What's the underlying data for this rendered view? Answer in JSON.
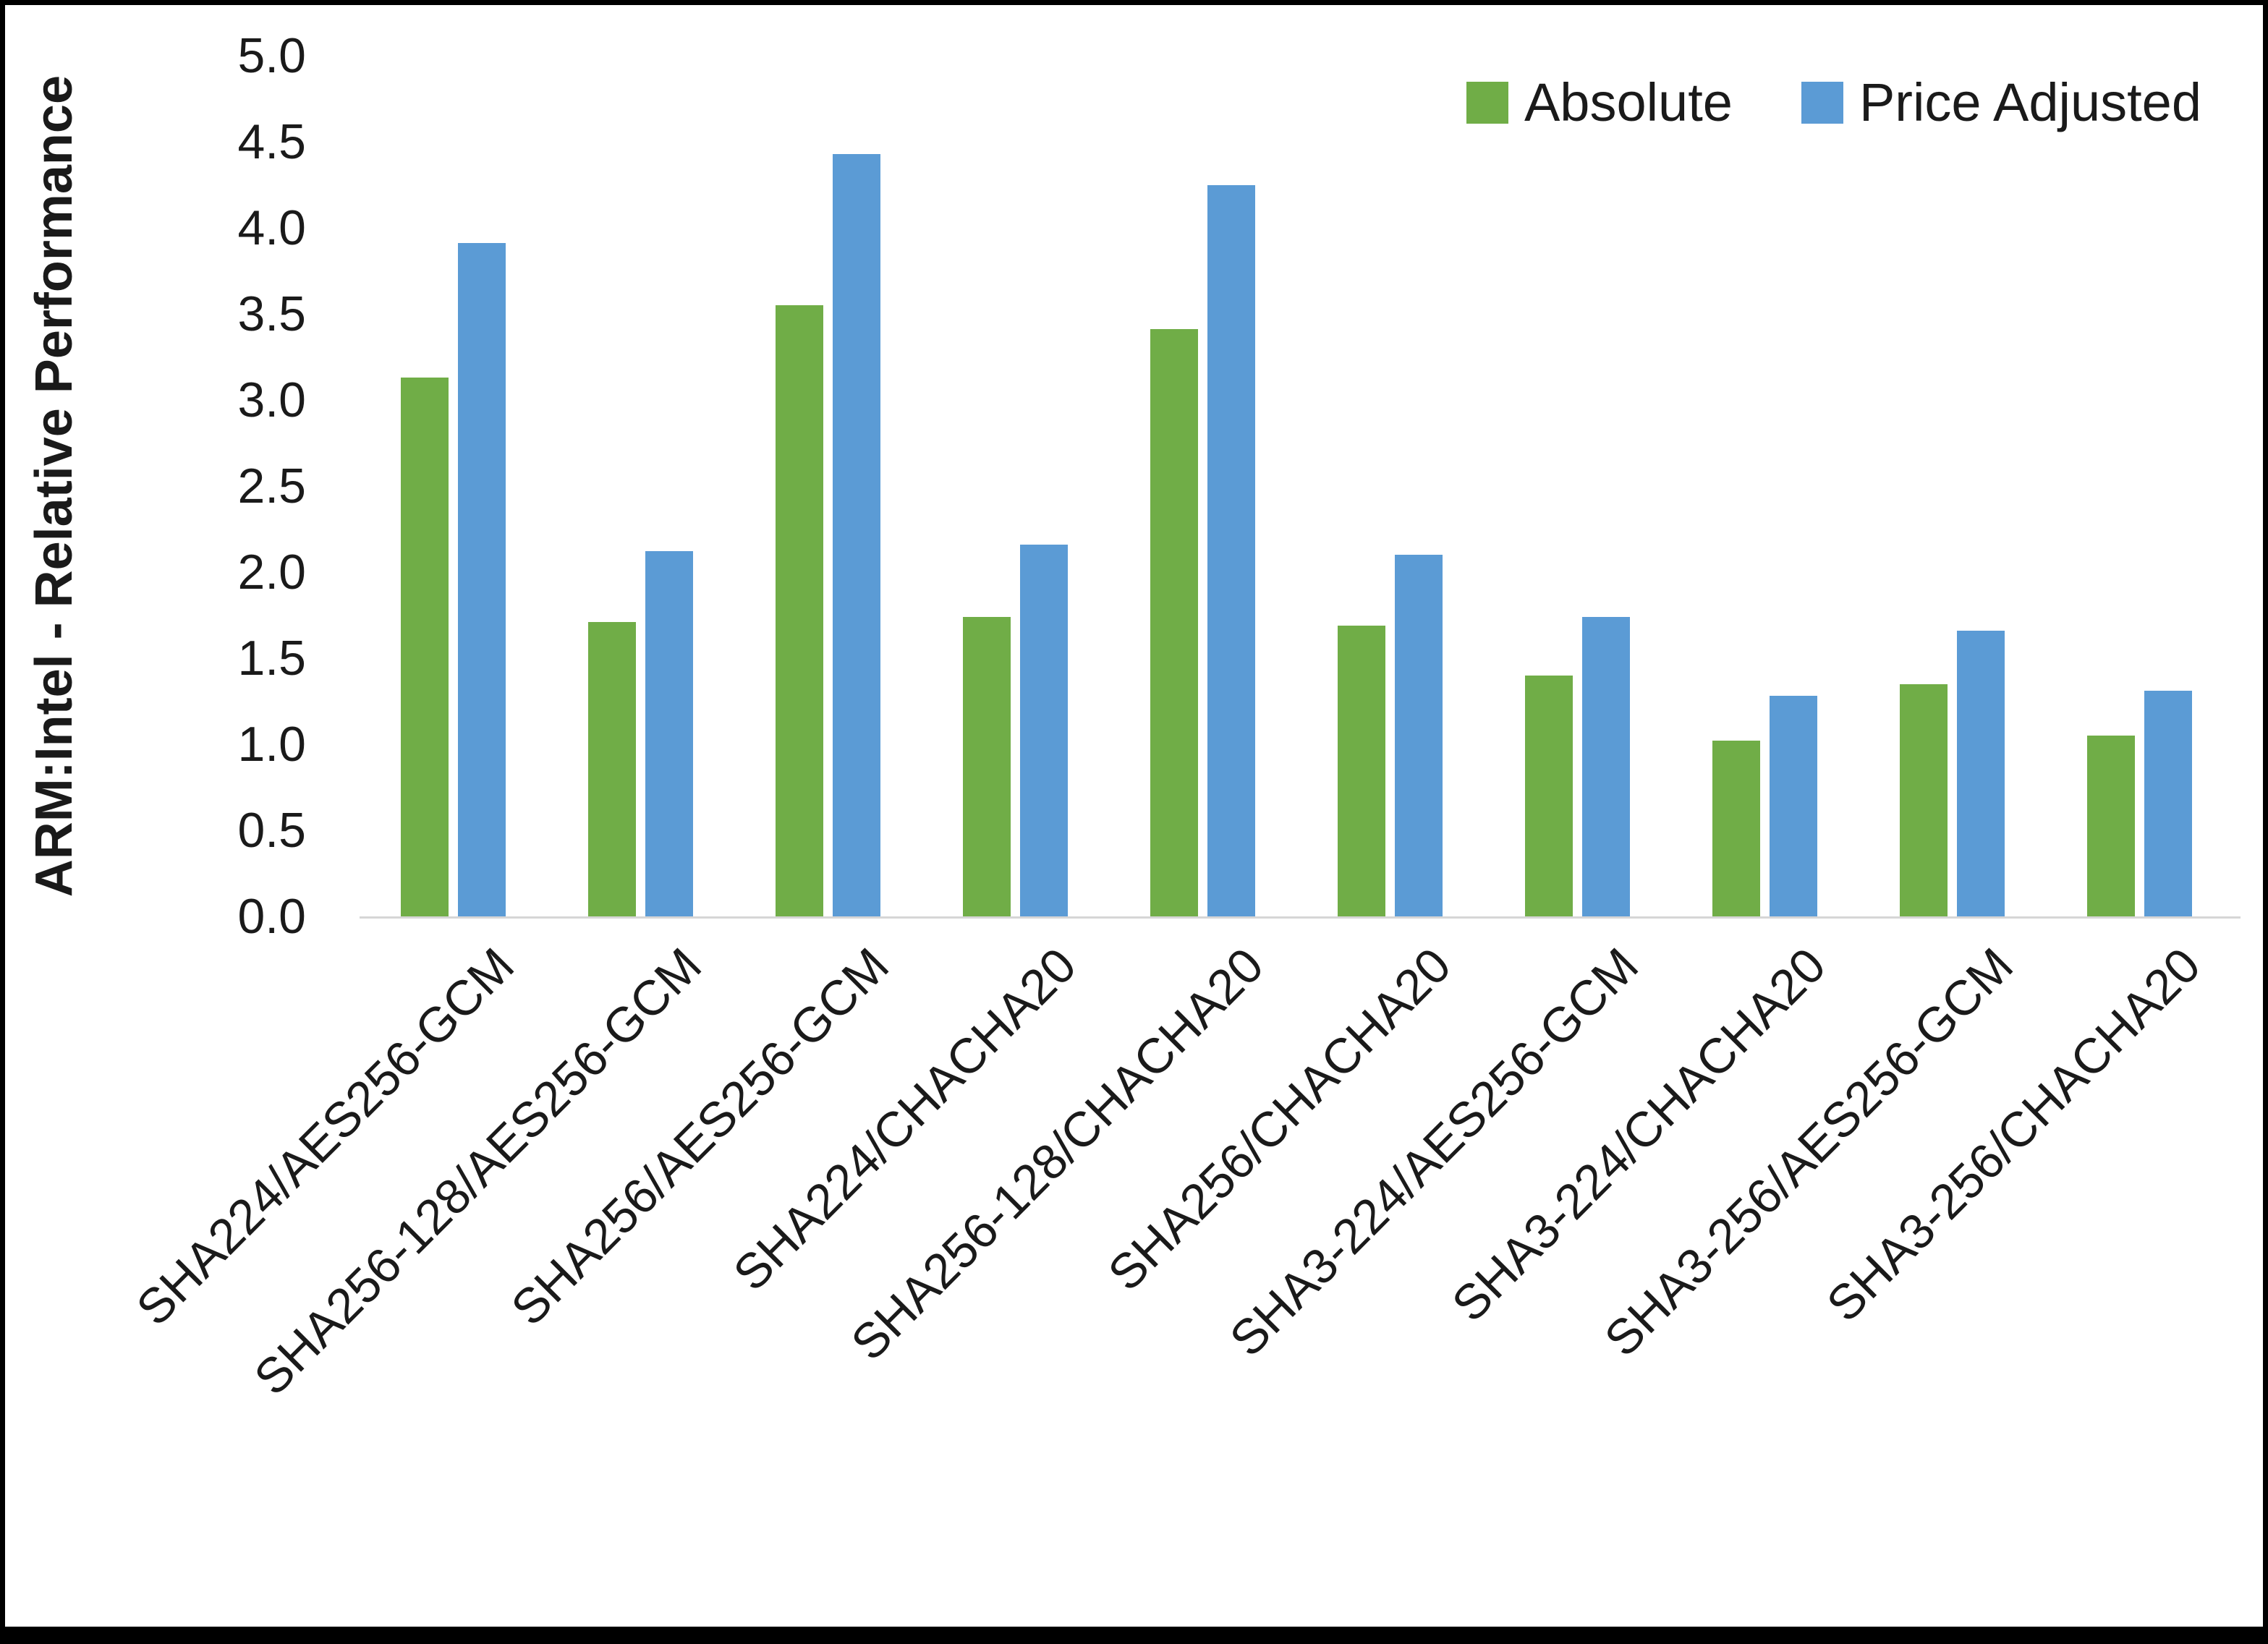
{
  "chart_data": {
    "type": "bar",
    "title": "",
    "xlabel": "",
    "ylabel": "ARM:Intel - Relative Performance",
    "ylim": [
      0,
      5
    ],
    "ytick_step": 0.5,
    "grid": false,
    "legend_position": "top-right",
    "categories": [
      "SHA224/AES256-GCM",
      "SHA256-128/AES256-GCM",
      "SHA256/AES256-GCM",
      "SHA224/CHACHA20",
      "SHA256-128/CHACHA20",
      "SHA256/CHACHA20",
      "SHA3-224/AES256-GCM",
      "SHA3-224/CHACHA20",
      "SHA3-256/AES256-GCM",
      "SHA3-256/CHACHA20"
    ],
    "series": [
      {
        "name": "Absolute",
        "color": "#70AD47",
        "values": [
          3.13,
          1.71,
          3.55,
          1.74,
          3.41,
          1.69,
          1.4,
          1.02,
          1.35,
          1.05
        ]
      },
      {
        "name": "Price Adjusted",
        "color": "#5B9BD5",
        "values": [
          3.91,
          2.12,
          4.43,
          2.16,
          4.25,
          2.1,
          1.74,
          1.28,
          1.66,
          1.31
        ]
      }
    ]
  },
  "colors": {
    "absolute": "#70AD47",
    "price_adjusted": "#5B9BD5",
    "axis_line": "#d6d6d6",
    "text": "#1a1a1a",
    "frame": "#000000"
  }
}
